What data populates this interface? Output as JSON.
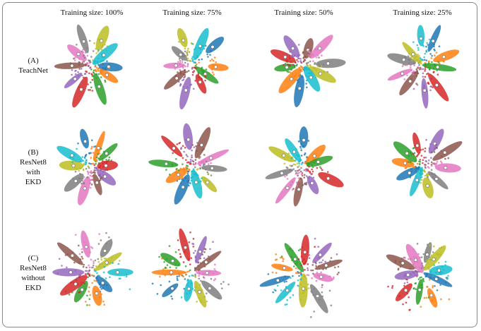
{
  "columns": [
    "Training size: 100%",
    "Training size: 75%",
    "Training size: 50%",
    "Training size: 25%"
  ],
  "rows": [
    {
      "label": [
        "(A)",
        "TeachNet"
      ]
    },
    {
      "label": [
        "(B)",
        "ResNet8",
        "with",
        "EKD"
      ]
    },
    {
      "label": [
        "(C)",
        "ResNet8",
        "without",
        "EKD"
      ]
    }
  ]
}
